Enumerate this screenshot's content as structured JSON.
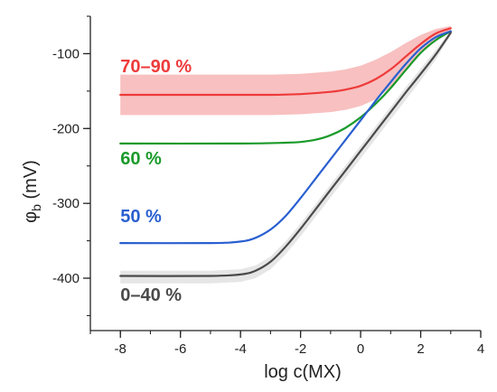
{
  "chart_data": {
    "type": "line",
    "xlabel": "log c(MX)",
    "ylabel": "φb (mV)",
    "ylabel_main": "φ",
    "ylabel_sub": "b",
    "ylabel_unit": " (mV)",
    "xlim": [
      -9,
      4
    ],
    "ylim": [
      -470,
      -50
    ],
    "x_ticks": [
      -8,
      -6,
      -4,
      -2,
      0,
      2,
      4
    ],
    "y_ticks": [
      -100,
      -200,
      -300,
      -400
    ],
    "x_minor_step": 1,
    "y_minor_step": 50,
    "grid": false,
    "legend": "none",
    "series": [
      {
        "name": "70–90 %",
        "color": "#ee3b3b",
        "band_color": "#f7b9b9",
        "x": [
          -8,
          -5,
          -3,
          -2,
          -1,
          -0.5,
          0,
          0.5,
          1,
          1.5,
          2,
          2.5,
          3
        ],
        "y": [
          -155,
          -155,
          -155,
          -154,
          -151,
          -148,
          -143,
          -134,
          -121,
          -104,
          -87,
          -73,
          -66
        ],
        "band_upper": [
          -128,
          -128,
          -128,
          -127,
          -124,
          -121,
          -116,
          -108,
          -98,
          -86,
          -75,
          -67,
          -63
        ],
        "band_lower": [
          -182,
          -182,
          -182,
          -181,
          -178,
          -175,
          -170,
          -161,
          -145,
          -124,
          -100,
          -80,
          -70
        ]
      },
      {
        "name": "60 %",
        "color": "#1a9a2a",
        "x": [
          -8,
          -4,
          -2.5,
          -2,
          -1.5,
          -1,
          -0.5,
          0,
          0.5,
          1,
          1.5,
          2,
          2.5,
          3
        ],
        "y": [
          -220,
          -220,
          -219,
          -218,
          -215,
          -209,
          -199,
          -185,
          -167,
          -146,
          -122,
          -99,
          -82,
          -70
        ]
      },
      {
        "name": "50 %",
        "color": "#2a5fd0",
        "x": [
          -8,
          -5,
          -4,
          -3.5,
          -3,
          -2.5,
          -2,
          -1.5,
          -1,
          -0.5,
          0,
          0.5,
          1,
          1.5,
          2,
          2.5,
          3
        ],
        "y": [
          -353,
          -353,
          -351,
          -346,
          -335,
          -317,
          -293,
          -267,
          -241,
          -215,
          -189,
          -163,
          -138,
          -114,
          -93,
          -78,
          -70
        ]
      },
      {
        "name": "0–40 %",
        "color": "#4a4a4a",
        "band_color": "#e3e3e3",
        "x": [
          -8,
          -5,
          -4,
          -3.5,
          -3,
          -2.5,
          -2,
          -1.5,
          -1,
          -0.5,
          0,
          0.5,
          1,
          1.5,
          2,
          2.5,
          3
        ],
        "y": [
          -397,
          -397,
          -395,
          -390,
          -378,
          -358,
          -334,
          -308,
          -282,
          -256,
          -230,
          -204,
          -178,
          -152,
          -127,
          -101,
          -72
        ],
        "band_upper": [
          -390,
          -390,
          -388,
          -383,
          -371,
          -351,
          -327,
          -301,
          -275,
          -249,
          -223,
          -197,
          -171,
          -145,
          -120,
          -95,
          -70
        ],
        "band_lower": [
          -407,
          -407,
          -405,
          -400,
          -388,
          -368,
          -344,
          -318,
          -292,
          -266,
          -240,
          -214,
          -188,
          -162,
          -136,
          -108,
          -75
        ]
      }
    ],
    "annotations": [
      {
        "text": "70–90 %",
        "x": -8,
        "y": -125,
        "color": "#ee3b3b"
      },
      {
        "text": "60 %",
        "x": -8,
        "y": -248,
        "color": "#1a9a2a"
      },
      {
        "text": "50 %",
        "x": -8,
        "y": -325,
        "color": "#2a5fd0"
      },
      {
        "text": "0–40 %",
        "x": -8,
        "y": -430,
        "color": "#4a4a4a"
      }
    ]
  }
}
